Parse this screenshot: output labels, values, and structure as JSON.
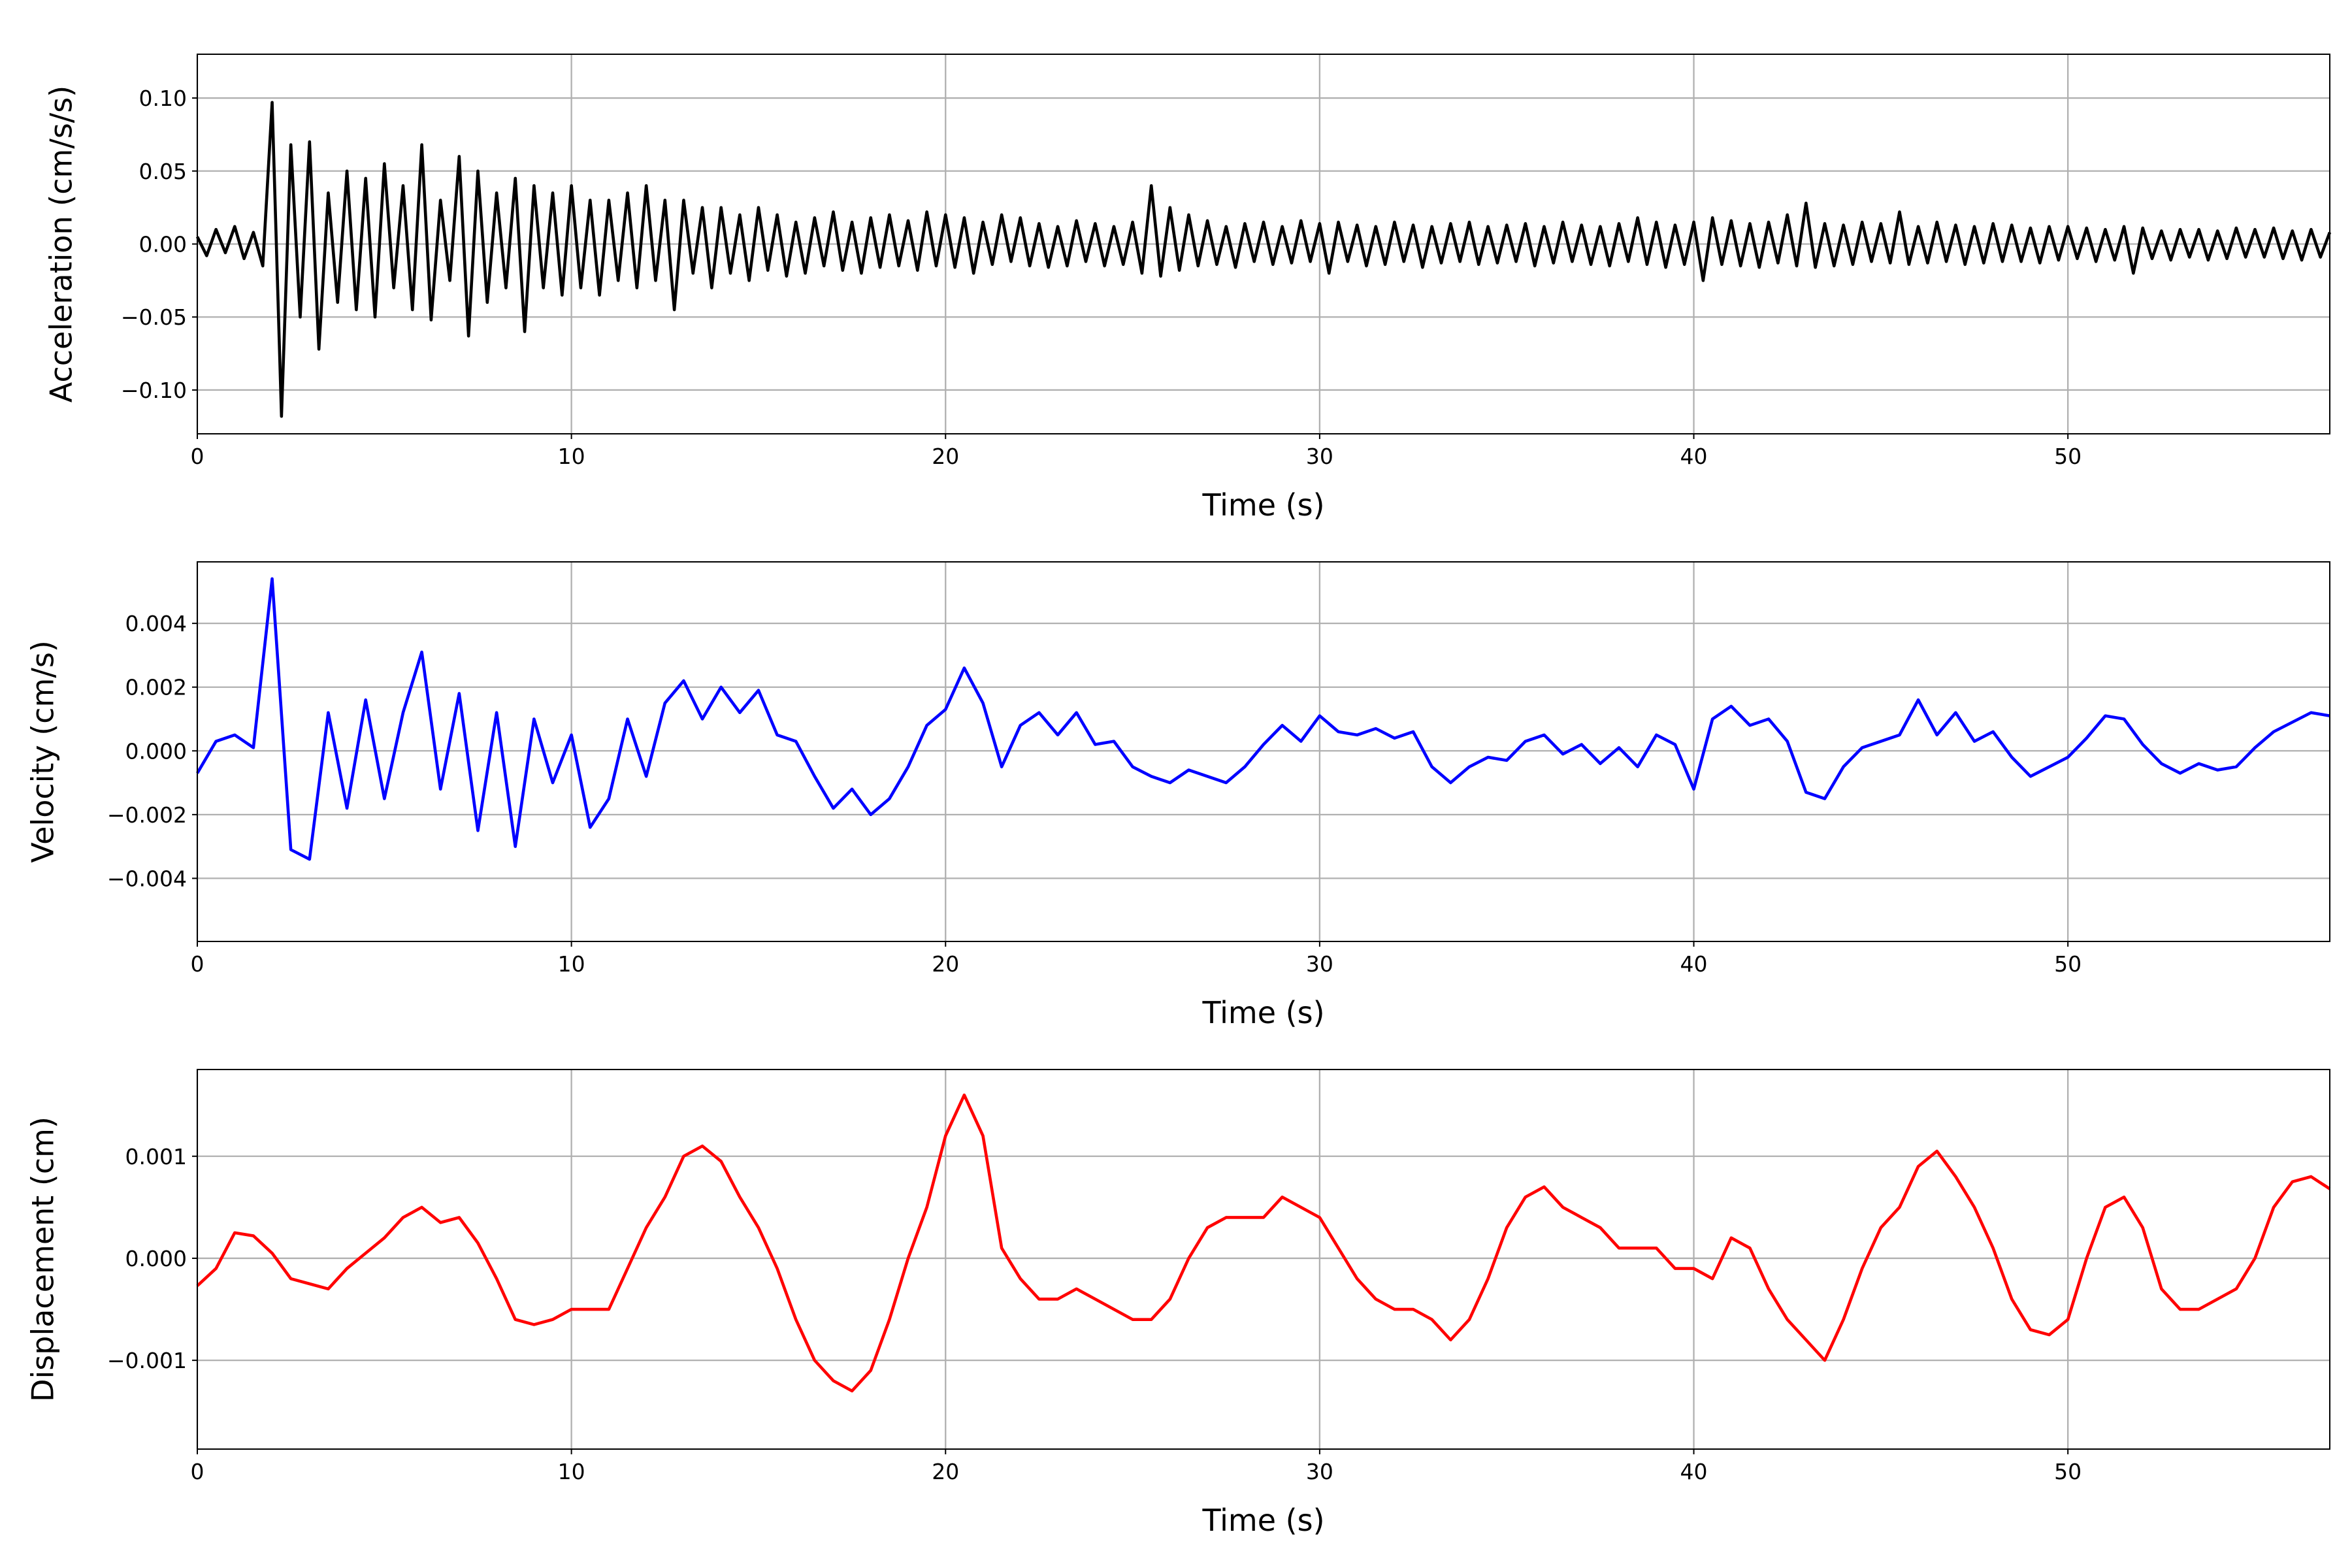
{
  "chart_data": [
    {
      "type": "line",
      "xlabel": "Time (s)",
      "ylabel": "Acceleration (cm/s/s)",
      "color": "#000000",
      "grid": true,
      "xlim": [
        0,
        57
      ],
      "xticks": [
        0,
        10,
        20,
        30,
        40,
        50
      ],
      "ylim": [
        -0.13,
        0.13
      ],
      "yticks": [
        {
          "value": -0.1,
          "label": "−0.10"
        },
        {
          "value": -0.05,
          "label": "−0.05"
        },
        {
          "value": 0,
          "label": "0.00"
        },
        {
          "value": 0.05,
          "label": "0.05"
        },
        {
          "value": 0.1,
          "label": "0.10"
        }
      ],
      "x": [
        0,
        0.25,
        0.5,
        0.75,
        1,
        1.25,
        1.5,
        1.75,
        2,
        2.25,
        2.5,
        2.75,
        3,
        3.25,
        3.5,
        3.75,
        4,
        4.25,
        4.5,
        4.75,
        5,
        5.25,
        5.5,
        5.75,
        6,
        6.25,
        6.5,
        6.75,
        7,
        7.25,
        7.5,
        7.75,
        8,
        8.25,
        8.5,
        8.75,
        9,
        9.25,
        9.5,
        9.75,
        10,
        10.25,
        10.5,
        10.75,
        11,
        11.25,
        11.5,
        11.75,
        12,
        12.25,
        12.5,
        12.75,
        13,
        13.25,
        13.5,
        13.75,
        14,
        14.25,
        14.5,
        14.75,
        15,
        15.25,
        15.5,
        15.75,
        16,
        16.25,
        16.5,
        16.75,
        17,
        17.25,
        17.5,
        17.75,
        18,
        18.25,
        18.5,
        18.75,
        19,
        19.25,
        19.5,
        19.75,
        20,
        20.25,
        20.5,
        20.75,
        21,
        21.25,
        21.5,
        21.75,
        22,
        22.25,
        22.5,
        22.75,
        23,
        23.25,
        23.5,
        23.75,
        24,
        24.25,
        24.5,
        24.75,
        25,
        25.25,
        25.5,
        25.75,
        26,
        26.25,
        26.5,
        26.75,
        27,
        27.25,
        27.5,
        27.75,
        28,
        28.25,
        28.5,
        28.75,
        29,
        29.25,
        29.5,
        29.75,
        30,
        30.25,
        30.5,
        30.75,
        31,
        31.25,
        31.5,
        31.75,
        32,
        32.25,
        32.5,
        32.75,
        33,
        33.25,
        33.5,
        33.75,
        34,
        34.25,
        34.5,
        34.75,
        35,
        35.25,
        35.5,
        35.75,
        36,
        36.25,
        36.5,
        36.75,
        37,
        37.25,
        37.5,
        37.75,
        38,
        38.25,
        38.5,
        38.75,
        39,
        39.25,
        39.5,
        39.75,
        40,
        40.25,
        40.5,
        40.75,
        41,
        41.25,
        41.5,
        41.75,
        42,
        42.25,
        42.5,
        42.75,
        43,
        43.25,
        43.5,
        43.75,
        44,
        44.25,
        44.5,
        44.75,
        45,
        45.25,
        45.5,
        45.75,
        46,
        46.25,
        46.5,
        46.75,
        47,
        47.25,
        47.5,
        47.75,
        48,
        48.25,
        48.5,
        48.75,
        49,
        49.25,
        49.5,
        49.75,
        50,
        50.25,
        50.5,
        50.75,
        51,
        51.25,
        51.5,
        51.75,
        52,
        52.25,
        52.5,
        52.75,
        53,
        53.25,
        53.5,
        53.75,
        54,
        54.25,
        54.5,
        54.75,
        55,
        55.25,
        55.5,
        55.75,
        56,
        56.25,
        56.5,
        56.75,
        57
      ],
      "values": [
        0.005,
        -0.008,
        0.01,
        -0.006,
        0.012,
        -0.01,
        0.008,
        -0.015,
        0.097,
        -0.118,
        0.068,
        -0.05,
        0.07,
        -0.072,
        0.035,
        -0.04,
        0.05,
        -0.045,
        0.045,
        -0.05,
        0.055,
        -0.03,
        0.04,
        -0.045,
        0.068,
        -0.052,
        0.03,
        -0.025,
        0.06,
        -0.063,
        0.05,
        -0.04,
        0.035,
        -0.03,
        0.045,
        -0.06,
        0.04,
        -0.03,
        0.035,
        -0.035,
        0.04,
        -0.03,
        0.03,
        -0.035,
        0.03,
        -0.025,
        0.035,
        -0.03,
        0.04,
        -0.025,
        0.03,
        -0.045,
        0.03,
        -0.02,
        0.025,
        -0.03,
        0.025,
        -0.02,
        0.02,
        -0.025,
        0.025,
        -0.018,
        0.02,
        -0.022,
        0.015,
        -0.02,
        0.018,
        -0.015,
        0.022,
        -0.018,
        0.015,
        -0.02,
        0.018,
        -0.016,
        0.02,
        -0.015,
        0.016,
        -0.018,
        0.022,
        -0.015,
        0.02,
        -0.016,
        0.018,
        -0.02,
        0.015,
        -0.014,
        0.02,
        -0.012,
        0.018,
        -0.015,
        0.014,
        -0.016,
        0.012,
        -0.015,
        0.016,
        -0.012,
        0.014,
        -0.015,
        0.012,
        -0.014,
        0.015,
        -0.02,
        0.04,
        -0.022,
        0.025,
        -0.018,
        0.02,
        -0.015,
        0.016,
        -0.014,
        0.012,
        -0.016,
        0.014,
        -0.012,
        0.015,
        -0.014,
        0.012,
        -0.013,
        0.016,
        -0.012,
        0.014,
        -0.02,
        0.015,
        -0.012,
        0.013,
        -0.015,
        0.012,
        -0.014,
        0.015,
        -0.012,
        0.013,
        -0.016,
        0.012,
        -0.013,
        0.014,
        -0.012,
        0.015,
        -0.014,
        0.012,
        -0.013,
        0.013,
        -0.012,
        0.014,
        -0.015,
        0.012,
        -0.013,
        0.015,
        -0.012,
        0.013,
        -0.014,
        0.012,
        -0.015,
        0.014,
        -0.012,
        0.018,
        -0.014,
        0.015,
        -0.016,
        0.013,
        -0.014,
        0.015,
        -0.025,
        0.018,
        -0.014,
        0.016,
        -0.015,
        0.014,
        -0.016,
        0.015,
        -0.013,
        0.02,
        -0.015,
        0.028,
        -0.016,
        0.014,
        -0.015,
        0.013,
        -0.014,
        0.015,
        -0.012,
        0.014,
        -0.013,
        0.022,
        -0.014,
        0.012,
        -0.013,
        0.015,
        -0.012,
        0.013,
        -0.014,
        0.012,
        -0.013,
        0.014,
        -0.012,
        0.013,
        -0.012,
        0.011,
        -0.013,
        0.012,
        -0.011,
        0.012,
        -0.01,
        0.011,
        -0.012,
        0.01,
        -0.011,
        0.012,
        -0.02,
        0.011,
        -0.01,
        0.009,
        -0.011,
        0.01,
        -0.009,
        0.01,
        -0.011,
        0.009,
        -0.01,
        0.011,
        -0.009,
        0.01,
        -0.009,
        0.011,
        -0.01,
        0.009,
        -0.011,
        0.01,
        -0.009,
        0.008
      ]
    },
    {
      "type": "line",
      "xlabel": "Time (s)",
      "ylabel": "Velocity (cm/s)",
      "color": "#0000ff",
      "grid": true,
      "xlim": [
        0,
        57
      ],
      "xticks": [
        0,
        10,
        20,
        30,
        40,
        50
      ],
      "ylim": [
        -0.00598,
        0.00593
      ],
      "yticks": [
        {
          "value": -0.004,
          "label": "−0.004"
        },
        {
          "value": -0.002,
          "label": "−0.002"
        },
        {
          "value": 0,
          "label": "0.000"
        },
        {
          "value": 0.002,
          "label": "0.002"
        },
        {
          "value": 0.004,
          "label": "0.004"
        }
      ],
      "x": [
        0,
        0.5,
        1,
        1.5,
        2,
        2.5,
        3,
        3.5,
        4,
        4.5,
        5,
        5.5,
        6,
        6.5,
        7,
        7.5,
        8,
        8.5,
        9,
        9.5,
        10,
        10.5,
        11,
        11.5,
        12,
        12.5,
        13,
        13.5,
        14,
        14.5,
        15,
        15.5,
        16,
        16.5,
        17,
        17.5,
        18,
        18.5,
        19,
        19.5,
        20,
        20.5,
        21,
        21.5,
        22,
        22.5,
        23,
        23.5,
        24,
        24.5,
        25,
        25.5,
        26,
        26.5,
        27,
        27.5,
        28,
        28.5,
        29,
        29.5,
        30,
        30.5,
        31,
        31.5,
        32,
        32.5,
        33,
        33.5,
        34,
        34.5,
        35,
        35.5,
        36,
        36.5,
        37,
        37.5,
        38,
        38.5,
        39,
        39.5,
        40,
        40.5,
        41,
        41.5,
        42,
        42.5,
        43,
        43.5,
        44,
        44.5,
        45,
        45.5,
        46,
        46.5,
        47,
        47.5,
        48,
        48.5,
        49,
        49.5,
        50,
        50.5,
        51,
        51.5,
        52,
        52.5,
        53,
        53.5,
        54,
        54.5,
        55,
        55.5,
        56,
        56.5,
        57
      ],
      "values": [
        -0.0007,
        0.0003,
        0.0005,
        0.0001,
        0.0054,
        -0.0031,
        -0.0034,
        0.0012,
        -0.0018,
        0.0016,
        -0.0015,
        0.0012,
        0.0031,
        -0.0012,
        0.0018,
        -0.0025,
        0.0012,
        -0.003,
        0.001,
        -0.001,
        0.0005,
        -0.0024,
        -0.0015,
        0.001,
        -0.0008,
        0.0015,
        0.0022,
        0.001,
        0.002,
        0.0012,
        0.0019,
        0.0005,
        0.0003,
        -0.0008,
        -0.0018,
        -0.0012,
        -0.002,
        -0.0015,
        -0.0005,
        0.0008,
        0.0013,
        0.0026,
        0.0015,
        -0.0005,
        0.0008,
        0.0012,
        0.0005,
        0.0012,
        0.0002,
        0.0003,
        -0.0005,
        -0.0008,
        -0.001,
        -0.0006,
        -0.0008,
        -0.001,
        -0.0005,
        0.0002,
        0.0008,
        0.0003,
        0.0011,
        0.0006,
        0.0005,
        0.0007,
        0.0004,
        0.0006,
        -0.0005,
        -0.001,
        -0.0005,
        -0.0002,
        -0.0003,
        0.0003,
        0.0005,
        -0.0001,
        0.0002,
        -0.0004,
        0.0001,
        -0.0005,
        0.0005,
        0.0002,
        -0.0012,
        0.001,
        0.0014,
        0.0008,
        0.001,
        0.0003,
        -0.0013,
        -0.0015,
        -0.0005,
        0.0001,
        0.0003,
        0.0005,
        0.0016,
        0.0005,
        0.0012,
        0.0003,
        0.0006,
        -0.0002,
        -0.0008,
        -0.0005,
        -0.0002,
        0.0004,
        0.0011,
        0.001,
        0.0002,
        -0.0004,
        -0.0007,
        -0.0004,
        -0.0006,
        -0.0005,
        0.0001,
        0.0006,
        0.0009,
        0.0012,
        0.0011
      ]
    },
    {
      "type": "line",
      "xlabel": "Time (s)",
      "ylabel": "Displacement (cm)",
      "color": "#ff0000",
      "grid": true,
      "xlim": [
        0,
        57
      ],
      "xticks": [
        0,
        10,
        20,
        30,
        40,
        50
      ],
      "ylim": [
        -0.00187,
        0.00185
      ],
      "yticks": [
        {
          "value": -0.001,
          "label": "−0.001"
        },
        {
          "value": 0,
          "label": "0.000"
        },
        {
          "value": 0.001,
          "label": "0.001"
        }
      ],
      "x": [
        0,
        0.5,
        1,
        1.5,
        2,
        2.5,
        3,
        3.5,
        4,
        4.5,
        5,
        5.5,
        6,
        6.5,
        7,
        7.5,
        8,
        8.5,
        9,
        9.5,
        10,
        10.5,
        11,
        11.5,
        12,
        12.5,
        13,
        13.5,
        14,
        14.5,
        15,
        15.5,
        16,
        16.5,
        17,
        17.5,
        18,
        18.5,
        19,
        19.5,
        20,
        20.5,
        21,
        21.5,
        22,
        22.5,
        23,
        23.5,
        24,
        24.5,
        25,
        25.5,
        26,
        26.5,
        27,
        27.5,
        28,
        28.5,
        29,
        29.5,
        30,
        30.5,
        31,
        31.5,
        32,
        32.5,
        33,
        33.5,
        34,
        34.5,
        35,
        35.5,
        36,
        36.5,
        37,
        37.5,
        38,
        38.5,
        39,
        39.5,
        40,
        40.5,
        41,
        41.5,
        42,
        42.5,
        43,
        43.5,
        44,
        44.5,
        45,
        45.5,
        46,
        46.5,
        47,
        47.5,
        48,
        48.5,
        49,
        49.5,
        50,
        50.5,
        51,
        51.5,
        52,
        52.5,
        53,
        53.5,
        54,
        54.5,
        55,
        55.5,
        56,
        56.5,
        57
      ],
      "values": [
        -0.00027,
        -0.0001,
        0.00025,
        0.00022,
        5e-05,
        -0.0002,
        -0.00025,
        -0.0003,
        -0.0001,
        5e-05,
        0.0002,
        0.0004,
        0.0005,
        0.00035,
        0.0004,
        0.00015,
        -0.0002,
        -0.0006,
        -0.00065,
        -0.0006,
        -0.0005,
        -0.0005,
        -0.0005,
        -0.0001,
        0.0003,
        0.0006,
        0.001,
        0.0011,
        0.00095,
        0.0006,
        0.0003,
        -0.0001,
        -0.0006,
        -0.001,
        -0.0012,
        -0.0013,
        -0.0011,
        -0.0006,
        0,
        0.0005,
        0.0012,
        0.0016,
        0.0012,
        0.0001,
        -0.0002,
        -0.0004,
        -0.0004,
        -0.0003,
        -0.0004,
        -0.0005,
        -0.0006,
        -0.0006,
        -0.0004,
        0,
        0.0003,
        0.0004,
        0.0004,
        0.0004,
        0.0006,
        0.0005,
        0.0004,
        0.0001,
        -0.0002,
        -0.0004,
        -0.0005,
        -0.0005,
        -0.0006,
        -0.0008,
        -0.0006,
        -0.0002,
        0.0003,
        0.0006,
        0.0007,
        0.0005,
        0.0004,
        0.0003,
        0.0001,
        0.0001,
        0.0001,
        -0.0001,
        -0.0001,
        -0.0002,
        0.0002,
        0.0001,
        -0.0003,
        -0.0006,
        -0.0008,
        -0.001,
        -0.0006,
        -0.0001,
        0.0003,
        0.0005,
        0.0009,
        0.00105,
        0.0008,
        0.0005,
        0.0001,
        -0.0004,
        -0.0007,
        -0.00075,
        -0.0006,
        0,
        0.0005,
        0.0006,
        0.0003,
        -0.0003,
        -0.0005,
        -0.0005,
        -0.0004,
        -0.0003,
        0,
        0.0005,
        0.00075,
        0.0008,
        0.00068
      ]
    }
  ]
}
